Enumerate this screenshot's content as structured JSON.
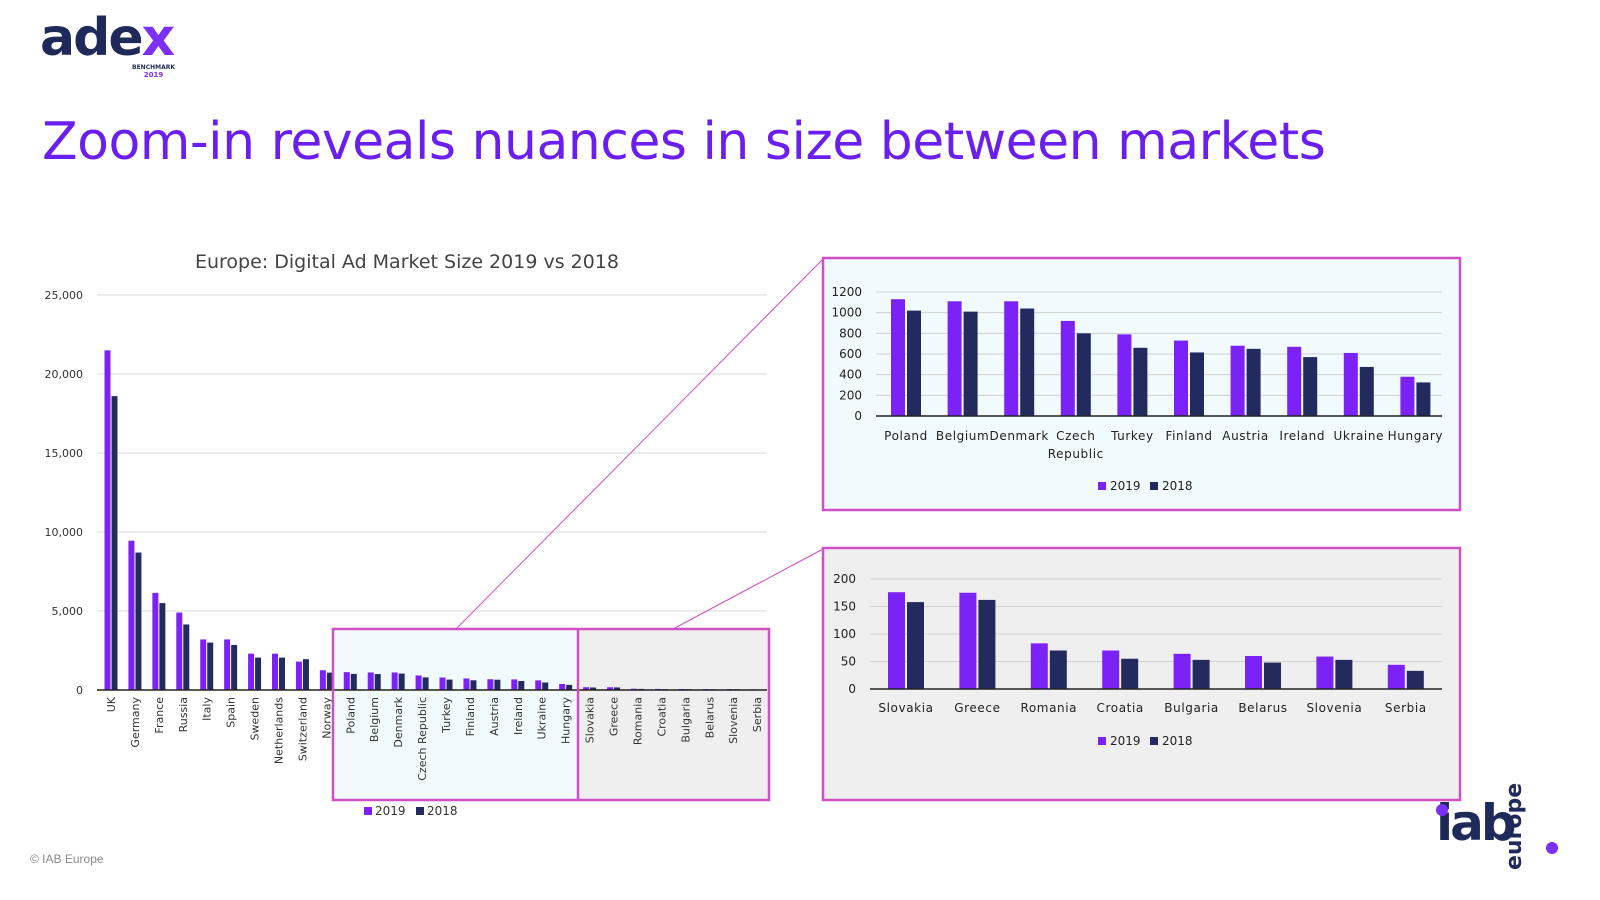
{
  "logo": {
    "word_main": "ade",
    "word_x": "x",
    "sub": "BENCHMARK",
    "year": "2019"
  },
  "title": "Zoom-in reveals nuances in size between markets",
  "copyright": "© IAB Europe",
  "brand": {
    "iab": "iab",
    "europe": "europe"
  },
  "colors": {
    "y2019": "#7b22f7",
    "y2018": "#232b5e",
    "box_border": "#d04fc4",
    "box1_bg": "#f1fafc",
    "box2_bg": "#efefef",
    "title": "#6a1ff0"
  },
  "chart_data": [
    {
      "type": "bar",
      "title": "Europe: Digital Ad Market Size 2019 vs 2018",
      "categories": [
        "UK",
        "Germany",
        "France",
        "Russia",
        "Italy",
        "Spain",
        "Sweden",
        "Netherlands",
        "Switzerland",
        "Norway",
        "Poland",
        "Belgium",
        "Denmark",
        "Czech Republic",
        "Turkey",
        "Finland",
        "Austria",
        "Ireland",
        "Ukraine",
        "Hungary",
        "Slovakia",
        "Greece",
        "Romania",
        "Croatia",
        "Bulgaria",
        "Belarus",
        "Slovenia",
        "Serbia"
      ],
      "series": [
        {
          "name": "2019",
          "values": [
            21500,
            9450,
            6150,
            4900,
            3200,
            3200,
            2300,
            2300,
            1800,
            1250,
            1130,
            1110,
            1110,
            920,
            790,
            730,
            680,
            670,
            610,
            380,
            176,
            175,
            83,
            70,
            64,
            60,
            59,
            44
          ]
        },
        {
          "name": "2018",
          "values": [
            18600,
            8700,
            5500,
            4150,
            3000,
            2850,
            2050,
            2050,
            1950,
            1100,
            1020,
            1010,
            1040,
            800,
            660,
            615,
            650,
            570,
            475,
            325,
            158,
            162,
            70,
            55,
            53,
            48,
            53,
            33
          ]
        }
      ],
      "ylim": [
        0,
        25000
      ],
      "yticks": [
        "0",
        "5,000",
        "10,000",
        "15,000",
        "20,000",
        "25,000"
      ],
      "legend": [
        "2019",
        "2018"
      ],
      "legend_position": "bottom"
    },
    {
      "type": "bar",
      "categories": [
        "Poland",
        "Belgium",
        "Denmark",
        "Czech Republic",
        "Turkey",
        "Finland",
        "Austria",
        "Ireland",
        "Ukraine",
        "Hungary"
      ],
      "series": [
        {
          "name": "2019",
          "values": [
            1130,
            1110,
            1110,
            920,
            790,
            730,
            680,
            670,
            610,
            380
          ]
        },
        {
          "name": "2018",
          "values": [
            1020,
            1010,
            1040,
            800,
            660,
            615,
            650,
            570,
            475,
            325
          ]
        }
      ],
      "ylim": [
        0,
        1200
      ],
      "yticks": [
        "0",
        "200",
        "400",
        "600",
        "800",
        "1000",
        "1200"
      ],
      "legend": [
        "2019",
        "2018"
      ],
      "legend_position": "bottom"
    },
    {
      "type": "bar",
      "categories": [
        "Slovakia",
        "Greece",
        "Romania",
        "Croatia",
        "Bulgaria",
        "Belarus",
        "Slovenia",
        "Serbia"
      ],
      "series": [
        {
          "name": "2019",
          "values": [
            176,
            175,
            83,
            70,
            64,
            60,
            59,
            44
          ]
        },
        {
          "name": "2018",
          "values": [
            158,
            162,
            70,
            55,
            53,
            48,
            53,
            33
          ]
        }
      ],
      "ylim": [
        0,
        200
      ],
      "yticks": [
        "0",
        "50",
        "100",
        "150",
        "200"
      ],
      "legend": [
        "2019",
        "2018"
      ],
      "legend_position": "bottom"
    }
  ]
}
